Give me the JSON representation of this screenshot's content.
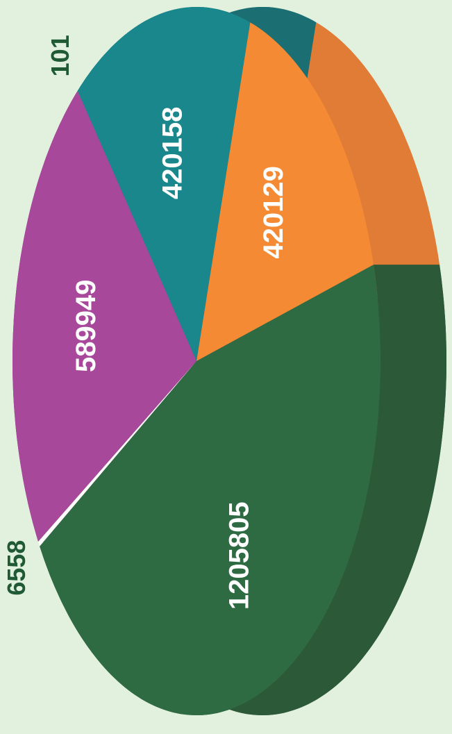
{
  "chart_data": {
    "type": "pie",
    "values": [
      420129,
      420158,
      101,
      589949,
      6558,
      1205805
    ],
    "colors": [
      "#f58a34",
      "#1a878c",
      "#1a6f73",
      "#a8489a",
      "#ffffff",
      "#2f6b42"
    ],
    "side_colors": [
      "#e07c36",
      "#1b6e72",
      "#1b6e72",
      "#8e3c82",
      "#dddddd",
      "#2c5937"
    ],
    "label_colors": [
      "#ffffff",
      "#ffffff",
      "#1f5a35",
      "#ffffff",
      "#1f5a35",
      "#ffffff"
    ]
  }
}
